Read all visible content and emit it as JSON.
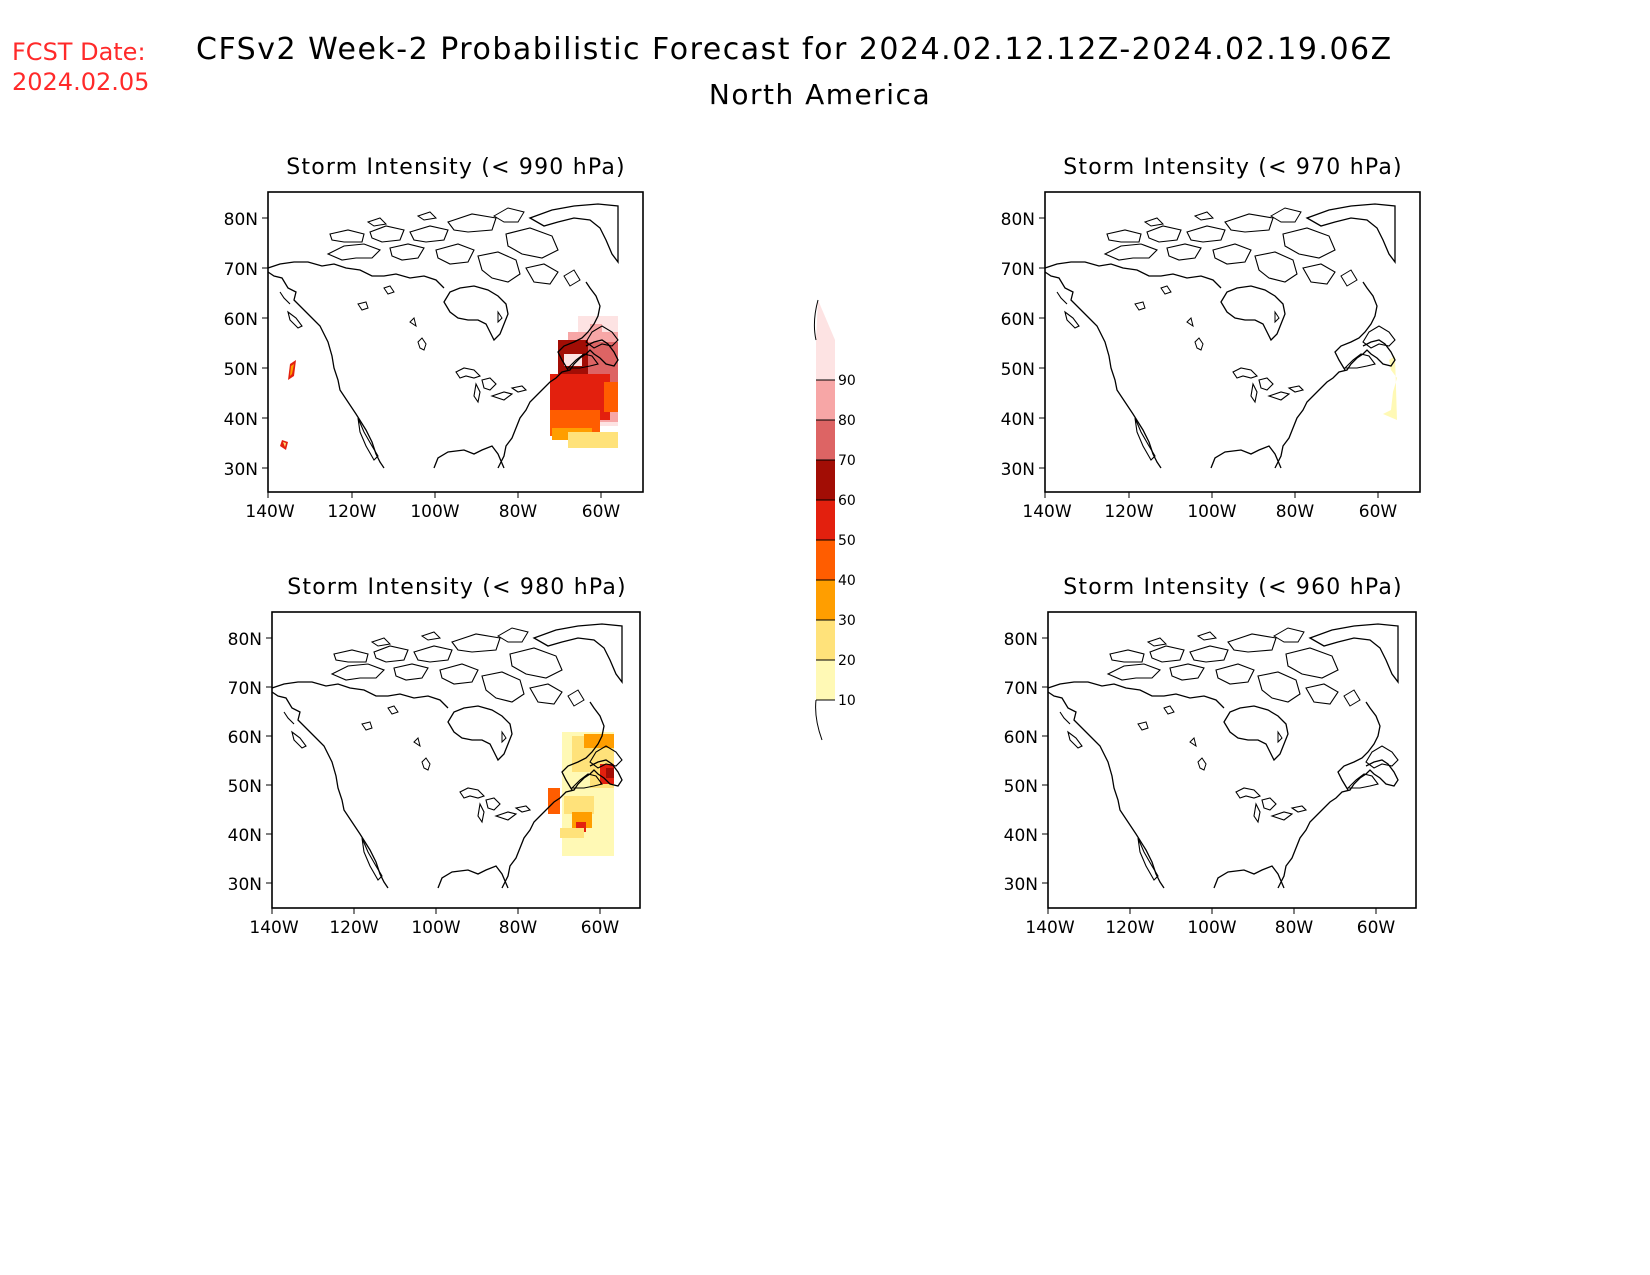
{
  "header": {
    "fcst_label": "FCST Date:",
    "fcst_date": "2024.02.05",
    "title": "CFSv2 Week-2 Probabilistic Forecast for 2024.02.12.12Z-2024.02.19.06Z",
    "subtitle": "North America"
  },
  "colors": {
    "fcst_text": "#ff2a2a",
    "scale": [
      "#fff9b5",
      "#ffe27a",
      "#ff9e00",
      "#ff5d00",
      "#e3200e",
      "#a20d05",
      "#dd6464",
      "#f7a6a6",
      "#fde3e3"
    ]
  },
  "legend": {
    "labels": [
      "10",
      "20",
      "30",
      "40",
      "50",
      "60",
      "70",
      "80",
      "90"
    ]
  },
  "panels": [
    {
      "title": "Storm Intensity (< 990 hPa)",
      "lat_labels": [
        "80N",
        "70N",
        "60N",
        "50N",
        "40N",
        "30N"
      ],
      "lon_labels": [
        "140W",
        "120W",
        "100W",
        "80W",
        "60W"
      ]
    },
    {
      "title": "Storm Intensity (< 970 hPa)",
      "lat_labels": [
        "80N",
        "70N",
        "60N",
        "50N",
        "40N",
        "30N"
      ],
      "lon_labels": [
        "140W",
        "120W",
        "100W",
        "80W",
        "60W"
      ]
    },
    {
      "title": "Storm Intensity (< 980 hPa)",
      "lat_labels": [
        "80N",
        "70N",
        "60N",
        "50N",
        "40N",
        "30N"
      ],
      "lon_labels": [
        "140W",
        "120W",
        "100W",
        "80W",
        "60W"
      ]
    },
    {
      "title": "Storm Intensity (< 960 hPa)",
      "lat_labels": [
        "80N",
        "70N",
        "60N",
        "50N",
        "40N",
        "30N"
      ],
      "lon_labels": [
        "140W",
        "120W",
        "100W",
        "80W",
        "60W"
      ]
    }
  ]
}
